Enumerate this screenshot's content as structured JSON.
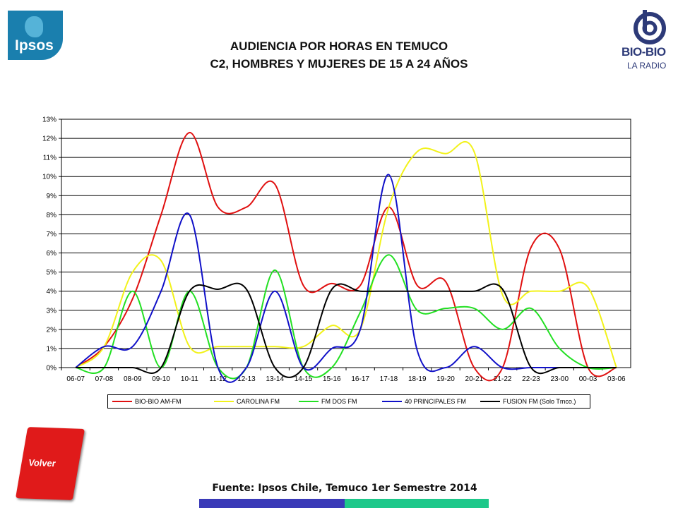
{
  "header": {
    "title_line1": "AUDIENCIA POR HORAS EN TEMUCO",
    "title_line2": "C2, HOMBRES Y MUJERES DE 15 A 24 AÑOS"
  },
  "logos": {
    "ipsos": "Ipsos",
    "biobio_name": "BIO-BIO",
    "biobio_sub": "LA RADIO"
  },
  "footer": {
    "source": "Fuente: Ipsos Chile, Temuco 1er Semestre 2014",
    "volver_label": "Volver"
  },
  "chart_data": {
    "type": "line",
    "categories": [
      "06-07",
      "07-08",
      "08-09",
      "09-10",
      "10-11",
      "11-12",
      "12-13",
      "13-14",
      "14-15",
      "15-16",
      "16-17",
      "17-18",
      "18-19",
      "19-20",
      "20-21",
      "21-22",
      "22-23",
      "23-00",
      "00-03",
      "03-06"
    ],
    "yticks": [
      "0%",
      "1%",
      "2%",
      "3%",
      "4%",
      "5%",
      "6%",
      "7%",
      "8%",
      "9%",
      "10%",
      "11%",
      "12%",
      "13%"
    ],
    "ylim": [
      0,
      13
    ],
    "grid": true,
    "legend_position": "bottom",
    "series": [
      {
        "name": "BIO-BIO AM-FM",
        "color": "#e01010",
        "values": [
          0.0,
          1.1,
          3.6,
          8.0,
          12.3,
          8.4,
          8.4,
          9.6,
          4.3,
          4.4,
          4.3,
          8.4,
          4.3,
          4.5,
          0.0,
          0.0,
          6.3,
          6.2,
          0.0,
          0.0
        ]
      },
      {
        "name": "CAROLINA FM",
        "color": "#f2f21a",
        "values": [
          0.0,
          1.1,
          5.0,
          5.6,
          1.1,
          1.1,
          1.1,
          1.1,
          1.1,
          2.2,
          2.0,
          8.4,
          11.3,
          11.2,
          11.3,
          3.8,
          4.0,
          4.0,
          4.2,
          0.0
        ]
      },
      {
        "name": "FM DOS FM",
        "color": "#22e022",
        "values": [
          0.0,
          0.0,
          4.0,
          0.0,
          4.0,
          0.0,
          0.0,
          5.1,
          0.0,
          0.0,
          2.9,
          5.9,
          3.0,
          3.1,
          3.1,
          2.0,
          3.1,
          1.0,
          0.0,
          0.0
        ]
      },
      {
        "name": "40 PRINCIPALES FM",
        "color": "#1010c8",
        "values": [
          0.0,
          1.1,
          1.1,
          4.0,
          8.0,
          0.0,
          0.0,
          4.0,
          0.0,
          1.0,
          2.0,
          10.1,
          0.9,
          0.0,
          1.1,
          0.0,
          0.0,
          0.0,
          0.0,
          0.0
        ]
      },
      {
        "name": "FUSION FM  (Solo Tmco.)",
        "color": "#000000",
        "values": [
          0.0,
          0.0,
          0.0,
          0.0,
          4.0,
          4.1,
          4.1,
          0.0,
          0.0,
          4.1,
          4.0,
          4.0,
          4.0,
          4.0,
          4.0,
          4.1,
          0.0,
          0.0,
          0.0,
          0.0
        ]
      }
    ]
  }
}
